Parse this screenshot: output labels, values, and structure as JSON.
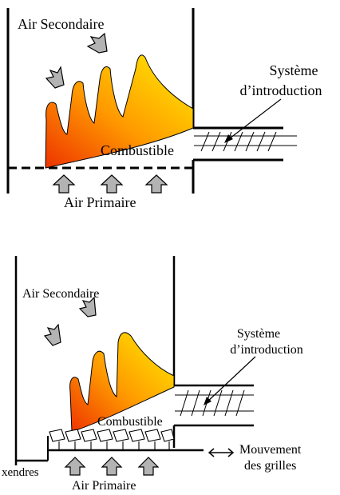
{
  "top_diagram": {
    "secondary_air": "Air Secondaire",
    "feed_system_line1": "Système",
    "feed_system_line2": "d’introduction",
    "fuel": "Combustible",
    "primary_air": "Air Primaire"
  },
  "bottom_diagram": {
    "secondary_air": "Air Secondaire",
    "feed_system_line1": "Système",
    "feed_system_line2": "d’introduction",
    "fuel": "Combustible",
    "ash": "xendres",
    "primary_air": "Air Primaire",
    "grate_motion_line1": "Mouvement",
    "grate_motion_line2": "des grilles"
  },
  "colors": {
    "flame_base": "#ee3300",
    "flame_mid": "#ff9900",
    "flame_tip": "#ffee00",
    "arrow_fill": "#b3b3b3"
  }
}
